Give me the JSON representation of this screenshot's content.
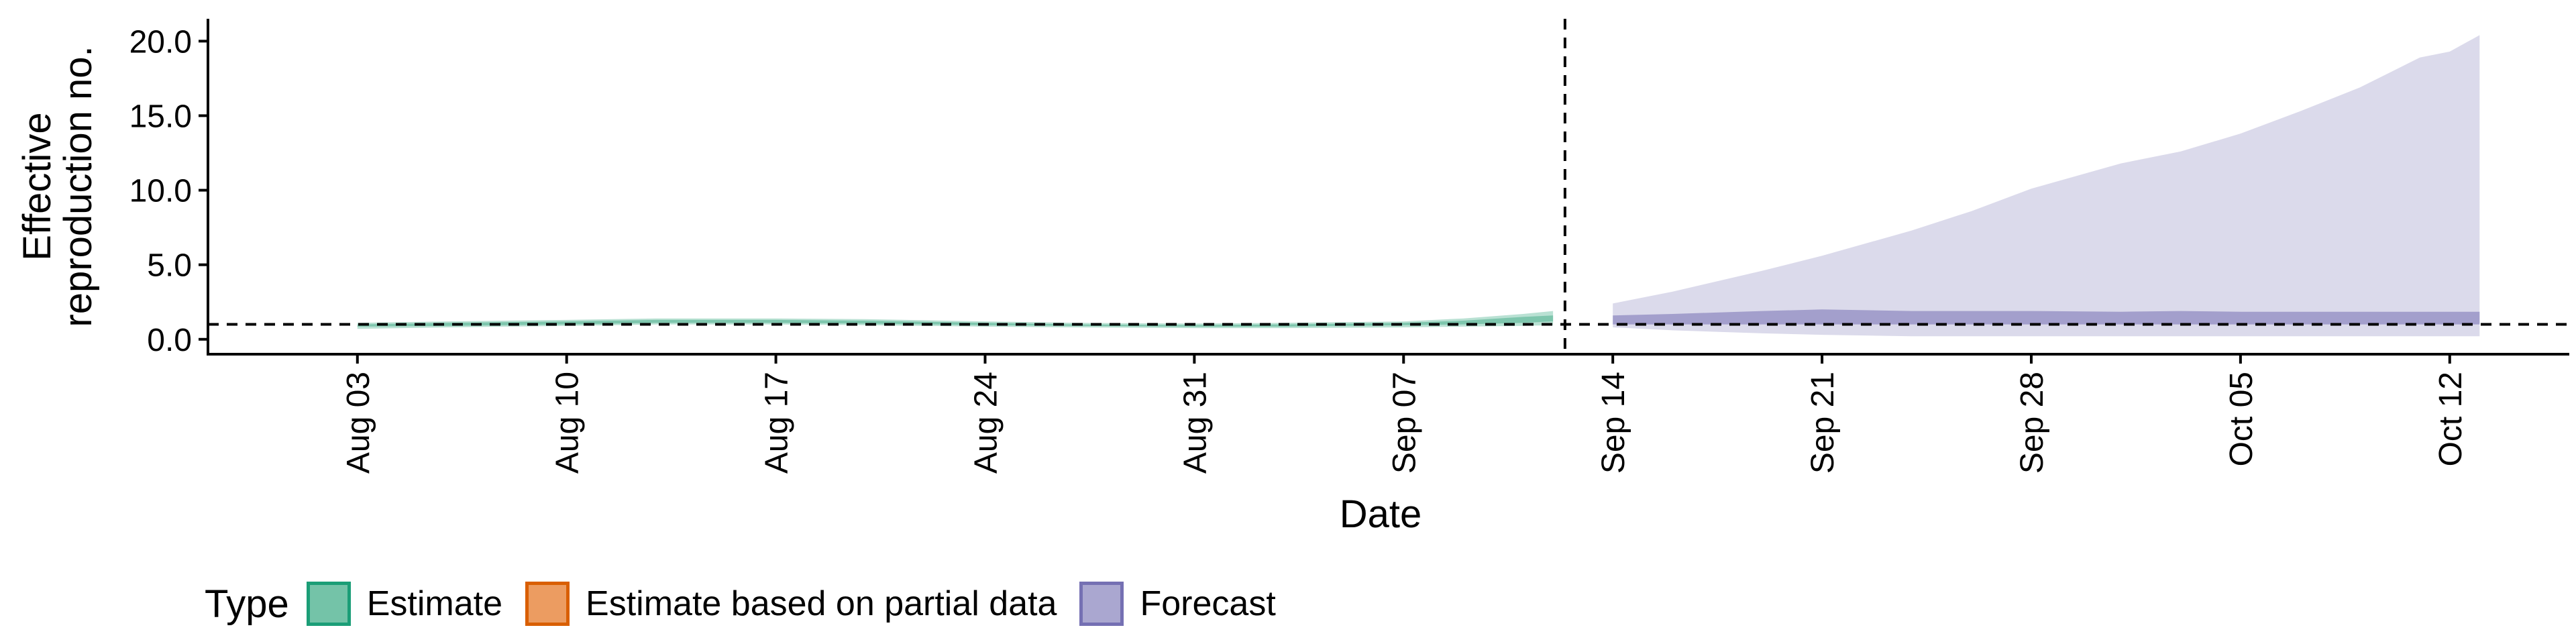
{
  "chart_data": {
    "type": "area",
    "title": "",
    "xlabel": "Date",
    "ylabel": "Effective\nreproduction no.",
    "x_ticks": [
      "Aug 03",
      "Aug 10",
      "Aug 17",
      "Aug 24",
      "Aug 31",
      "Sep 07",
      "Sep 14",
      "Sep 21",
      "Sep 28",
      "Oct 05",
      "Oct 12"
    ],
    "y_ticks": [
      "0.0",
      "5.0",
      "10.0",
      "15.0",
      "20.0"
    ],
    "xlim": [
      "2020-07-29",
      "2020-10-16"
    ],
    "ylim": [
      -1.0,
      21.5
    ],
    "grid": false,
    "reference_lines": [
      {
        "orientation": "horizontal",
        "y": 1.0,
        "style": "dashed"
      },
      {
        "orientation": "vertical",
        "x": "2020-09-13",
        "style": "dashed"
      }
    ],
    "legend": {
      "title": "Type",
      "position": "bottom-left",
      "entries": [
        "Estimate",
        "Estimate based on partial data",
        "Forecast"
      ]
    },
    "colors": {
      "Estimate": "#1b9e77",
      "Estimate based on partial data": "#d95f02",
      "Forecast": "#7570b3"
    },
    "series": [
      {
        "name": "Estimate",
        "x": [
          "2020-08-03",
          "2020-08-06",
          "2020-08-10",
          "2020-08-13",
          "2020-08-17",
          "2020-08-20",
          "2020-08-24",
          "2020-08-27",
          "2020-08-31",
          "2020-09-03",
          "2020-09-07",
          "2020-09-09",
          "2020-09-11",
          "2020-09-12"
        ],
        "outer_lower": [
          0.7,
          0.8,
          0.9,
          1.0,
          1.0,
          0.95,
          0.85,
          0.8,
          0.75,
          0.75,
          0.8,
          0.85,
          0.9,
          0.95
        ],
        "outer_upper": [
          1.1,
          1.2,
          1.3,
          1.4,
          1.4,
          1.35,
          1.2,
          1.1,
          1.05,
          1.1,
          1.2,
          1.4,
          1.7,
          1.9
        ],
        "inner_lower": [
          0.85,
          0.9,
          1.0,
          1.1,
          1.1,
          1.05,
          0.95,
          0.9,
          0.85,
          0.85,
          0.95,
          1.0,
          1.1,
          1.2
        ],
        "inner_upper": [
          1.0,
          1.1,
          1.2,
          1.3,
          1.3,
          1.25,
          1.1,
          1.0,
          0.95,
          1.0,
          1.1,
          1.25,
          1.5,
          1.6
        ]
      },
      {
        "name": "Forecast",
        "x": [
          "2020-09-14",
          "2020-09-16",
          "2020-09-19",
          "2020-09-21",
          "2020-09-24",
          "2020-09-26",
          "2020-09-28",
          "2020-10-01",
          "2020-10-03",
          "2020-10-05",
          "2020-10-07",
          "2020-10-09",
          "2020-10-11",
          "2020-10-12",
          "2020-10-13"
        ],
        "outer_lower": [
          0.8,
          0.6,
          0.4,
          0.3,
          0.2,
          0.2,
          0.2,
          0.2,
          0.2,
          0.2,
          0.2,
          0.2,
          0.2,
          0.2,
          0.2
        ],
        "outer_upper": [
          2.4,
          3.2,
          4.6,
          5.6,
          7.3,
          8.6,
          10.1,
          11.8,
          12.6,
          13.8,
          15.3,
          16.9,
          18.9,
          19.3,
          20.4
        ],
        "inner_lower": [
          1.0,
          1.0,
          1.0,
          1.0,
          1.0,
          1.0,
          1.0,
          1.0,
          1.0,
          1.0,
          1.0,
          1.0,
          1.0,
          1.0,
          1.0
        ],
        "inner_upper": [
          1.6,
          1.7,
          1.9,
          2.0,
          1.9,
          1.9,
          1.9,
          1.85,
          1.9,
          1.85,
          1.85,
          1.85,
          1.85,
          1.85,
          1.85
        ]
      }
    ]
  }
}
